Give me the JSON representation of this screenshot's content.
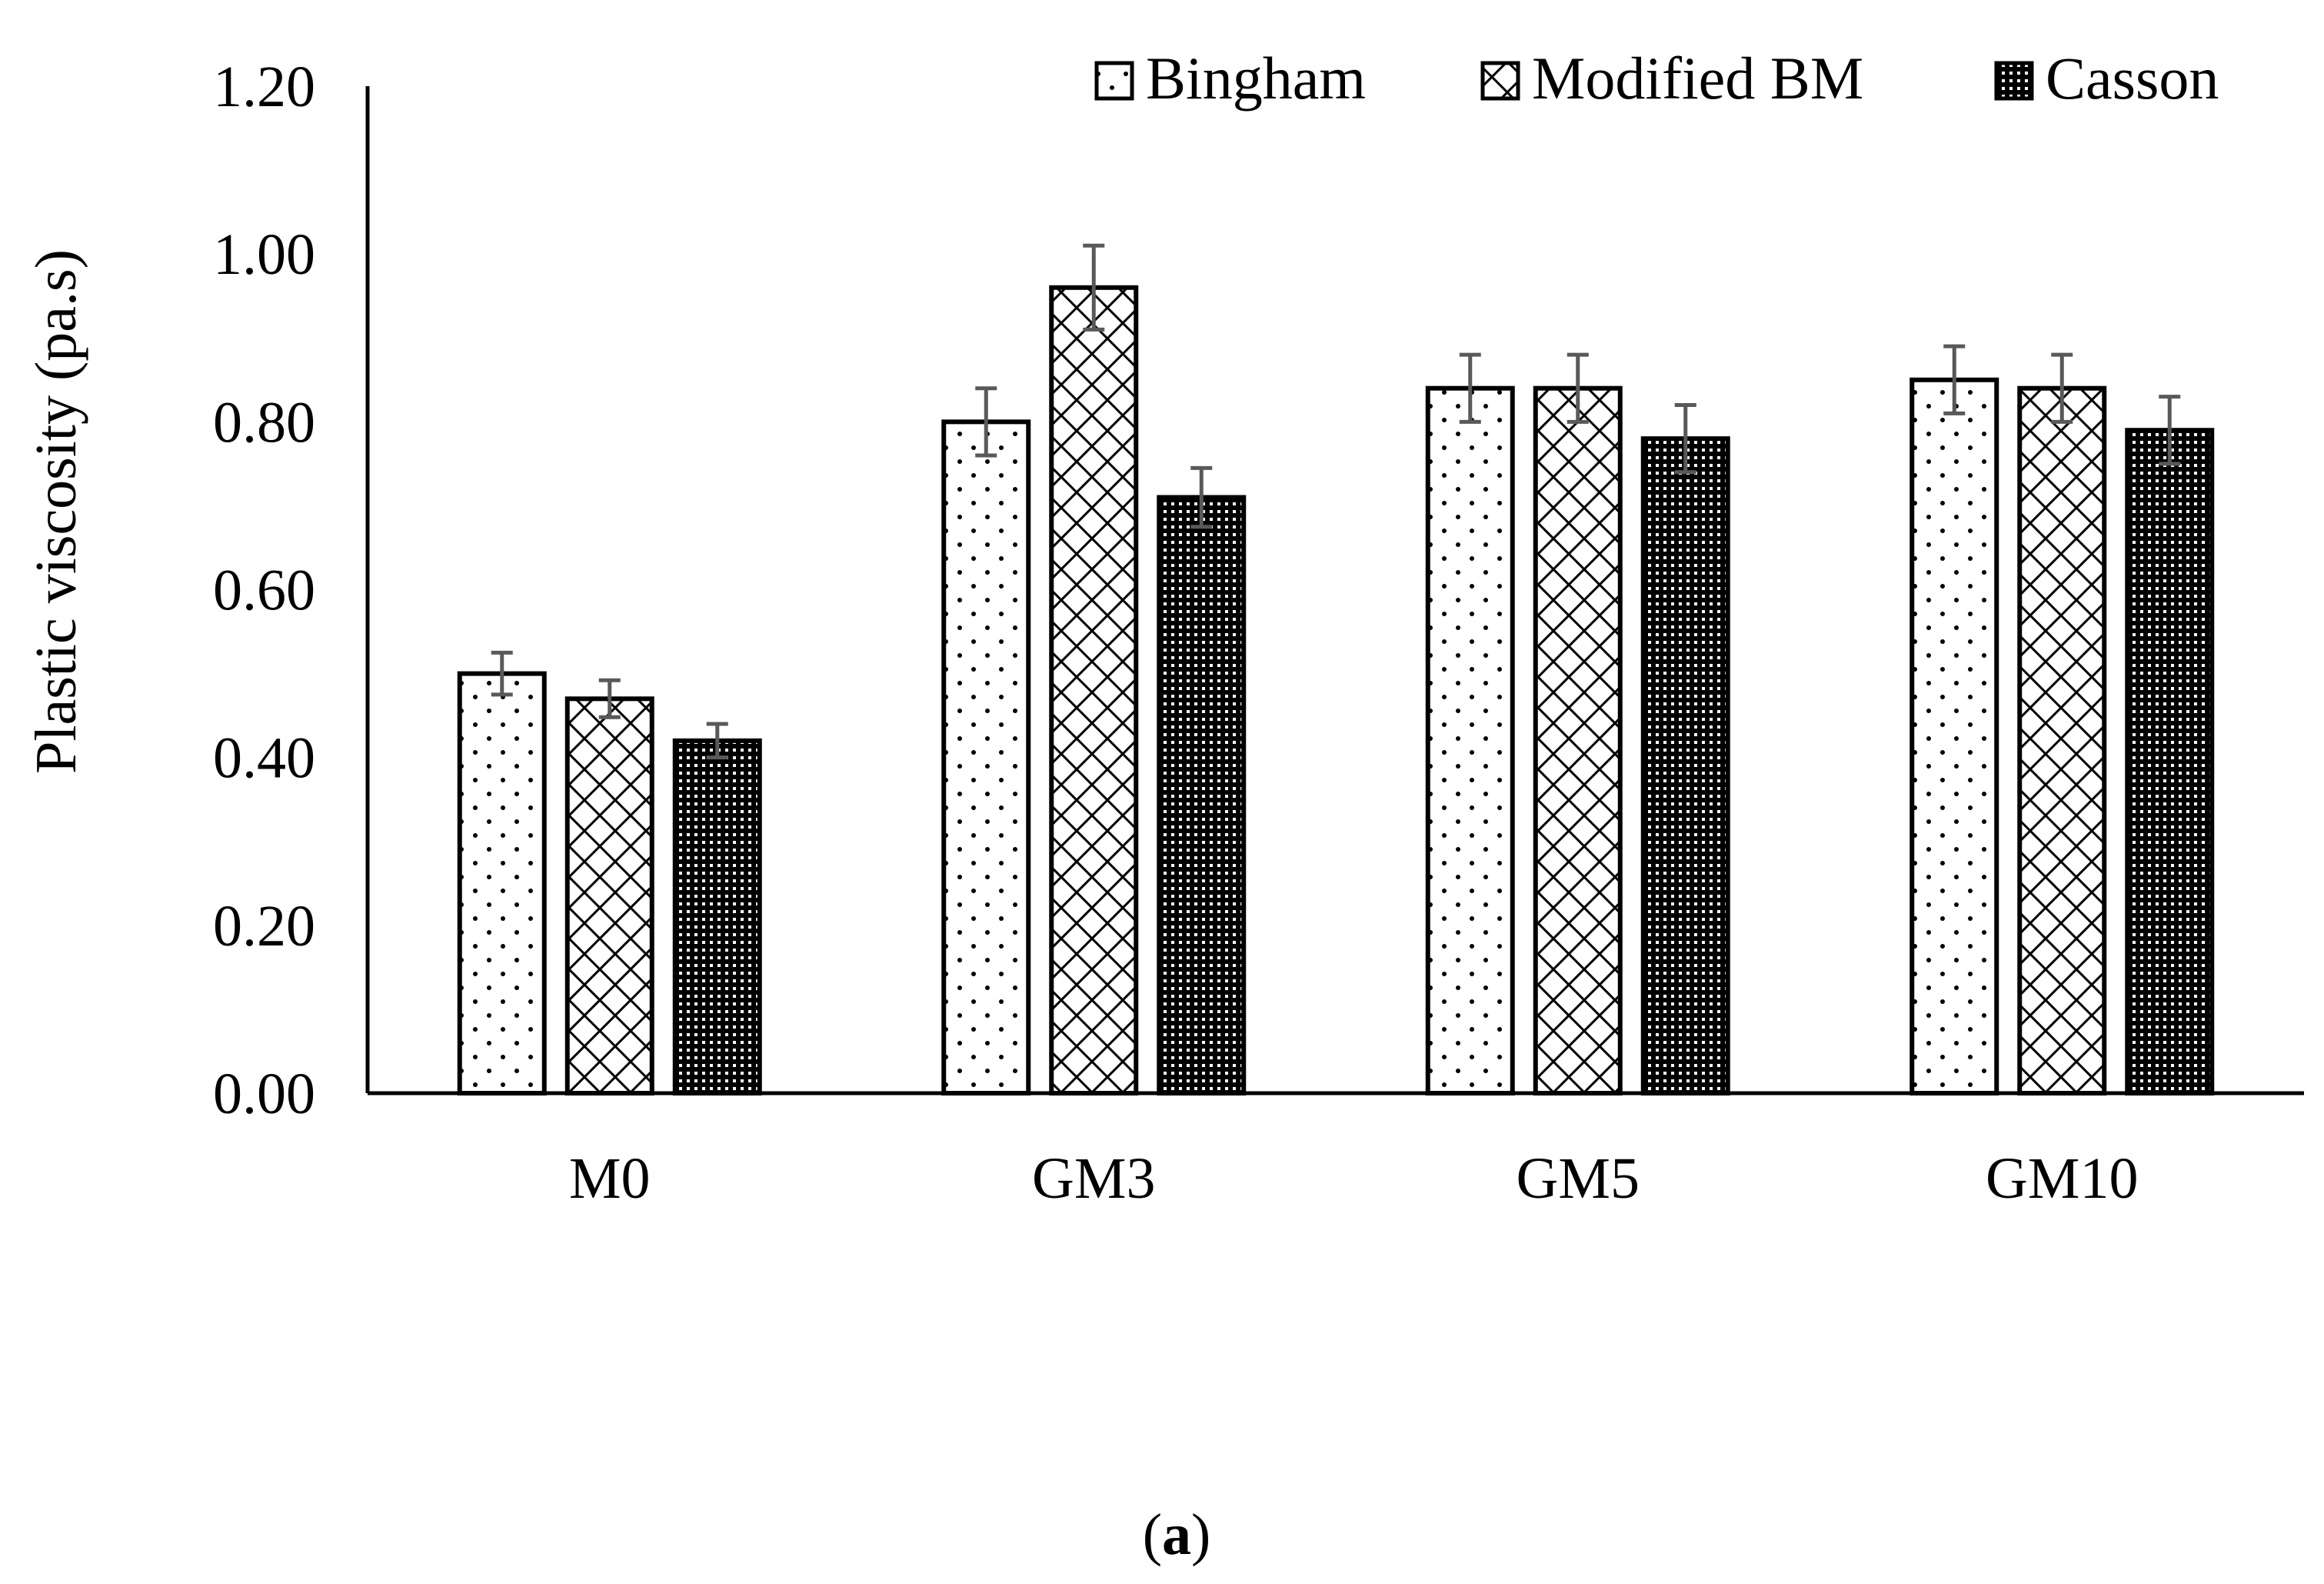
{
  "chart_data": {
    "type": "bar",
    "title": "",
    "xlabel": "",
    "ylabel": "Plastic viscosity (pa.s)",
    "ylim": [
      0,
      1.2
    ],
    "yticks": [
      "0.00",
      "0.20",
      "0.40",
      "0.60",
      "0.80",
      "1.00",
      "1.20"
    ],
    "tick_values": [
      0,
      0.2,
      0.4,
      0.6,
      0.8,
      1.0,
      1.2
    ],
    "categories": [
      "M0",
      "GM3",
      "GM5",
      "GM10"
    ],
    "series": [
      {
        "name": "Bingham",
        "pattern": "dots",
        "values": [
          0.5,
          0.8,
          0.84,
          0.85
        ],
        "errors": [
          0.025,
          0.04,
          0.04,
          0.04
        ]
      },
      {
        "name": "Modified BM",
        "pattern": "crosshatch",
        "values": [
          0.47,
          0.96,
          0.84,
          0.84
        ],
        "errors": [
          0.022,
          0.05,
          0.04,
          0.04
        ]
      },
      {
        "name": "Casson",
        "pattern": "dense",
        "values": [
          0.42,
          0.71,
          0.78,
          0.79
        ],
        "errors": [
          0.02,
          0.035,
          0.04,
          0.04
        ]
      }
    ],
    "legend_position": "top-right",
    "grid": false
  },
  "caption": {
    "open": "(",
    "letter": "a",
    "close": ")"
  },
  "colors": {
    "bar_stroke": "#000000",
    "error_bar": "#595959",
    "axis": "#000000"
  }
}
